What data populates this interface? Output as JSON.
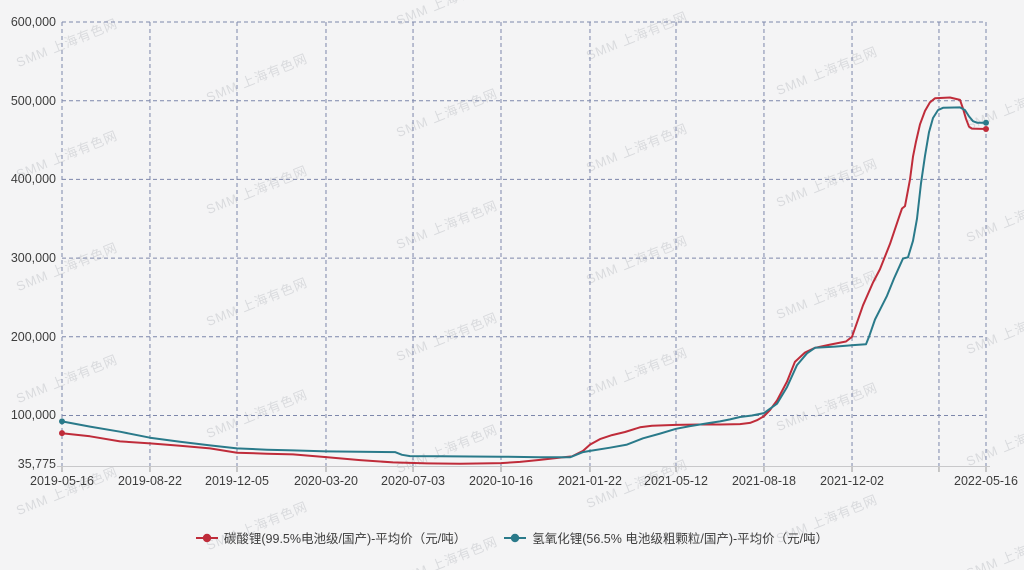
{
  "watermark": {
    "text": "SMM 上海有色网"
  },
  "colors": {
    "carbonate_red": "#bf2c3a",
    "hydroxide_teal": "#2a7a8a",
    "grid": "#7d87ab",
    "axis_text": "#3d3d3d",
    "axis_line": "#c8c8ca",
    "tick": "#9a9a9a",
    "background": "#f4f4f5"
  },
  "chart_data": {
    "type": "line",
    "title": "",
    "xlabel": "",
    "ylabel": "",
    "unit": "元/吨",
    "grid": "dashed",
    "legend_position": "bottom",
    "y_axis": {
      "min": 35775,
      "max": 600000,
      "tick_values": [
        600000,
        500000,
        400000,
        300000,
        200000,
        100000,
        35775
      ],
      "tick_labels": [
        "600,000",
        "500,000",
        "400,000",
        "300,000",
        "200,000",
        "100,000",
        "35,775"
      ]
    },
    "x_axis": {
      "tick_positions": [
        0.0,
        0.0952,
        0.1894,
        0.2857,
        0.3799,
        0.4751,
        0.5714,
        0.6645,
        0.7597,
        0.855,
        0.9491,
        1.0
      ],
      "tick_labels": [
        "2019-05-16",
        "2019-08-22",
        "2019-12-05",
        "2020-03-20",
        "2020-07-03",
        "2020-10-16",
        "2021-01-22",
        "2021-05-12",
        "2021-08-18",
        "2021-12-02",
        "",
        "2022-05-16"
      ]
    },
    "series": [
      {
        "name": "碳酸锂(99.5%电池级/国产)-平均价（元/吨）",
        "color": "#bf2c3a",
        "points": [
          [
            0.0,
            77500
          ],
          [
            0.0303,
            73500
          ],
          [
            0.0628,
            67000
          ],
          [
            0.0952,
            64500
          ],
          [
            0.1277,
            61500
          ],
          [
            0.1602,
            58200
          ],
          [
            0.1894,
            52700
          ],
          [
            0.2219,
            51400
          ],
          [
            0.25,
            50500
          ],
          [
            0.2857,
            47100
          ],
          [
            0.3225,
            43300
          ],
          [
            0.3582,
            40400
          ],
          [
            0.395,
            39100
          ],
          [
            0.4307,
            38700
          ],
          [
            0.4751,
            39500
          ],
          [
            0.4957,
            41000
          ],
          [
            0.5173,
            43500
          ],
          [
            0.539,
            46500
          ],
          [
            0.5519,
            48000
          ],
          [
            0.5639,
            55000
          ],
          [
            0.5714,
            63000
          ],
          [
            0.5823,
            70000
          ],
          [
            0.5952,
            75000
          ],
          [
            0.6093,
            79000
          ],
          [
            0.6255,
            85000
          ],
          [
            0.6385,
            87000
          ],
          [
            0.6645,
            88000
          ],
          [
            0.6905,
            88500
          ],
          [
            0.7121,
            88500
          ],
          [
            0.7338,
            89000
          ],
          [
            0.7446,
            90500
          ],
          [
            0.7522,
            94000
          ],
          [
            0.7597,
            99000
          ],
          [
            0.7662,
            107000
          ],
          [
            0.7738,
            119000
          ],
          [
            0.7846,
            143000
          ],
          [
            0.7932,
            168000
          ],
          [
            0.8041,
            180000
          ],
          [
            0.8149,
            186000
          ],
          [
            0.8312,
            190000
          ],
          [
            0.8485,
            194000
          ],
          [
            0.855,
            200000
          ],
          [
            0.8604,
            218000
          ],
          [
            0.8669,
            240000
          ],
          [
            0.8777,
            269000
          ],
          [
            0.8853,
            286000
          ],
          [
            0.8961,
            318000
          ],
          [
            0.9058,
            352000
          ],
          [
            0.9091,
            363000
          ],
          [
            0.9123,
            366000
          ],
          [
            0.9177,
            400000
          ],
          [
            0.921,
            429000
          ],
          [
            0.9242,
            448000
          ],
          [
            0.9286,
            470000
          ],
          [
            0.934,
            487000
          ],
          [
            0.9394,
            498000
          ],
          [
            0.9448,
            503000
          ],
          [
            0.961,
            504000
          ],
          [
            0.9719,
            501000
          ],
          [
            0.9751,
            490000
          ],
          [
            0.9784,
            477000
          ],
          [
            0.9816,
            467000
          ],
          [
            0.9848,
            464500
          ],
          [
            1.0,
            464000
          ]
        ]
      },
      {
        "name": "氢氧化锂(56.5% 电池级粗颗粒/国产)-平均价（元/吨）",
        "color": "#2a7a8a",
        "points": [
          [
            0.0,
            92500
          ],
          [
            0.0303,
            85800
          ],
          [
            0.0628,
            79400
          ],
          [
            0.0952,
            71800
          ],
          [
            0.1277,
            66700
          ],
          [
            0.1602,
            62000
          ],
          [
            0.1894,
            58200
          ],
          [
            0.2219,
            56500
          ],
          [
            0.25,
            55600
          ],
          [
            0.2857,
            54300
          ],
          [
            0.3225,
            54000
          ],
          [
            0.3604,
            53500
          ],
          [
            0.368,
            50000
          ],
          [
            0.3766,
            48400
          ],
          [
            0.4091,
            48200
          ],
          [
            0.4416,
            47900
          ],
          [
            0.4751,
            47600
          ],
          [
            0.5173,
            47000
          ],
          [
            0.5498,
            46800
          ],
          [
            0.5639,
            53500
          ],
          [
            0.5714,
            55000
          ],
          [
            0.5931,
            59000
          ],
          [
            0.6115,
            63000
          ],
          [
            0.6288,
            71000
          ],
          [
            0.6472,
            77000
          ],
          [
            0.6645,
            83000
          ],
          [
            0.6797,
            86500
          ],
          [
            0.6905,
            88500
          ],
          [
            0.7013,
            90500
          ],
          [
            0.7121,
            92500
          ],
          [
            0.7229,
            95000
          ],
          [
            0.7338,
            98000
          ],
          [
            0.7468,
            100000
          ],
          [
            0.7597,
            103000
          ],
          [
            0.7738,
            115000
          ],
          [
            0.7846,
            136000
          ],
          [
            0.7955,
            164000
          ],
          [
            0.8063,
            179000
          ],
          [
            0.8149,
            186000
          ],
          [
            0.8366,
            187500
          ],
          [
            0.8582,
            189500
          ],
          [
            0.8701,
            190500
          ],
          [
            0.8734,
            200000
          ],
          [
            0.8799,
            222000
          ],
          [
            0.8864,
            237000
          ],
          [
            0.8929,
            252000
          ],
          [
            0.9004,
            274000
          ],
          [
            0.9069,
            291000
          ],
          [
            0.9102,
            299500
          ],
          [
            0.9156,
            301000
          ],
          [
            0.921,
            322000
          ],
          [
            0.9253,
            350000
          ],
          [
            0.9297,
            395000
          ],
          [
            0.934,
            430000
          ],
          [
            0.9383,
            460000
          ],
          [
            0.9426,
            478000
          ],
          [
            0.9481,
            488000
          ],
          [
            0.9535,
            491000
          ],
          [
            0.9719,
            491500
          ],
          [
            0.9773,
            488000
          ],
          [
            0.9816,
            480000
          ],
          [
            0.9859,
            474000
          ],
          [
            0.9903,
            472000
          ],
          [
            1.0,
            472000
          ]
        ]
      }
    ]
  }
}
